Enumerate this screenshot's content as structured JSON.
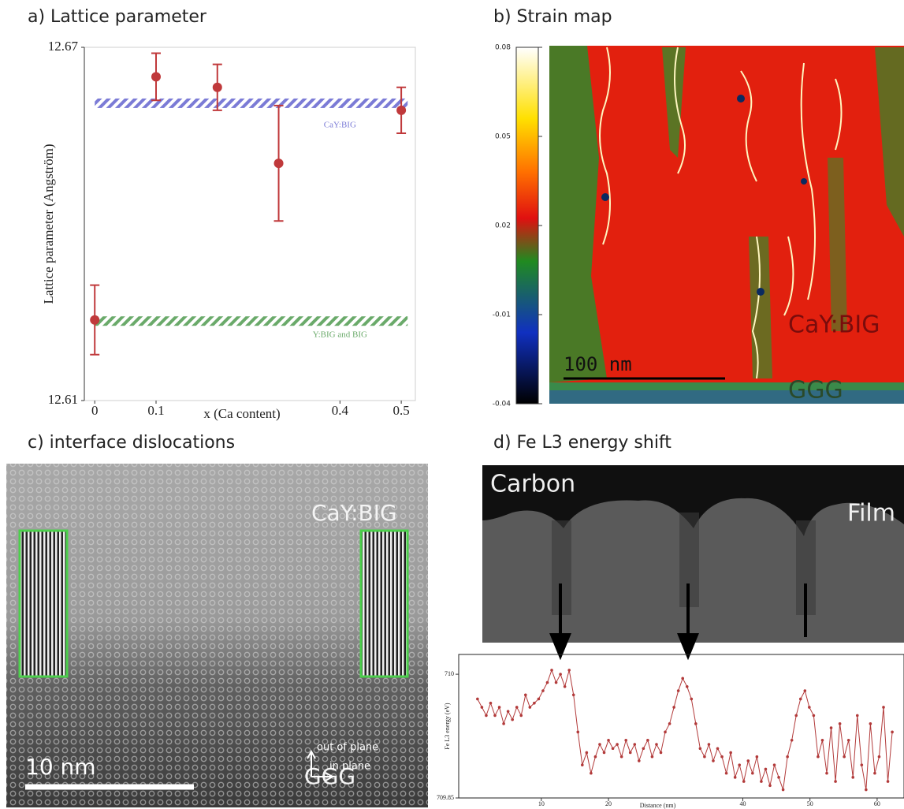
{
  "chart_data": [
    {
      "type": "scatter",
      "title": "a) Lattice parameter",
      "x_label": "x (Ca content)",
      "y_label": "Lattice parameter (Angström)",
      "x": [
        0,
        0.1,
        0.2,
        0.3,
        0.5
      ],
      "series": [
        {
          "color": "#c0393b",
          "values": [
            12.6237,
            12.665,
            12.6632,
            12.6503,
            12.6593
          ],
          "errors": [
            0.0059,
            0.004,
            0.0039,
            0.0098,
            0.0039
          ]
        }
      ],
      "bands": [
        {
          "label": "CaY:BIG",
          "value": 12.6605,
          "color": "#7b7bd6"
        },
        {
          "label": "Y:BIG and BIG",
          "value": 12.6235,
          "color": "#6aaa6a"
        }
      ],
      "xlim": [
        -0.017,
        0.523
      ],
      "xticks": [
        0,
        0.1,
        0.4,
        0.5
      ],
      "ylim": [
        12.61,
        12.67
      ],
      "yticks": [
        12.61,
        12.67
      ]
    },
    {
      "type": "line",
      "title": "d) Fe L3 energy shift",
      "x_label": "Distance (nm)",
      "y_label": "Fe L3 energy (eV)",
      "x": [
        0.5,
        1.15,
        1.8,
        2.45,
        3.1,
        3.75,
        4.4,
        5.05,
        5.7,
        6.35,
        7,
        7.65,
        8.3,
        8.95,
        9.6,
        10.25,
        10.9,
        11.55,
        12.2,
        12.85,
        13.5,
        14.15,
        14.8,
        15.45,
        16.1,
        16.75,
        17.4,
        18.05,
        18.7,
        19.35,
        20,
        20.65,
        21.3,
        21.95,
        22.6,
        23.25,
        23.9,
        24.55,
        25.2,
        25.85,
        26.5,
        27.15,
        27.8,
        28.45,
        29.1,
        29.75,
        30.4,
        31.05,
        31.7,
        32.35,
        33,
        33.65,
        34.3,
        34.95,
        35.6,
        36.25,
        36.9,
        37.55,
        38.2,
        38.85,
        39.5,
        40.15,
        40.8,
        41.45,
        42.1,
        42.75,
        43.4,
        44.05,
        44.7,
        45.35,
        46,
        46.65,
        47.3,
        47.95,
        48.6,
        49.25,
        49.9,
        50.55,
        51.2,
        51.85,
        52.5,
        53.15,
        53.8,
        54.45,
        55.1,
        55.75,
        56.4,
        57.05,
        57.7,
        58.35,
        59,
        59.65,
        60.3,
        60.95,
        61.6,
        62.25
      ],
      "series": [
        {
          "color": "#b23a3a",
          "values": [
            709.97,
            709.96,
            709.95,
            709.965,
            709.95,
            709.96,
            709.94,
            709.955,
            709.945,
            709.96,
            709.95,
            709.975,
            709.96,
            709.965,
            709.97,
            709.98,
            709.99,
            710.005,
            709.99,
            710.0,
            709.985,
            710.005,
            709.975,
            709.93,
            709.89,
            709.905,
            709.88,
            709.9,
            709.915,
            709.905,
            709.92,
            709.91,
            709.915,
            709.9,
            709.92,
            709.905,
            709.915,
            709.895,
            709.91,
            709.92,
            709.9,
            709.915,
            709.905,
            709.93,
            709.94,
            709.96,
            709.98,
            709.995,
            709.985,
            709.97,
            709.94,
            709.91,
            709.9,
            709.915,
            709.895,
            709.91,
            709.9,
            709.88,
            709.905,
            709.875,
            709.89,
            709.87,
            709.895,
            709.88,
            709.9,
            709.87,
            709.885,
            709.865,
            709.89,
            709.875,
            709.86,
            709.9,
            709.92,
            709.95,
            709.97,
            709.98,
            709.96,
            709.95,
            709.9,
            709.92,
            709.88,
            709.935,
            709.87,
            709.94,
            709.9,
            709.92,
            709.875,
            709.95,
            709.89,
            709.86,
            709.94,
            709.88,
            709.9,
            709.96,
            709.87,
            709.93
          ]
        }
      ],
      "xlim": [
        -2.3,
        64
      ],
      "xticks": [
        10,
        20,
        40,
        50,
        60
      ],
      "ylim": [
        709.85,
        710.024
      ],
      "yticks": [
        709.85,
        710
      ]
    }
  ],
  "strain_map": {
    "title": "b) Strain map",
    "colorbar": {
      "ylim": [
        -0.04,
        0.08
      ],
      "yticks": [
        0.08,
        0.05,
        0.02,
        -0.01,
        -0.04
      ]
    },
    "labels": [
      "CaY:BIG",
      "GGG"
    ],
    "scale_bar": "100 nm"
  },
  "dislocation_image": {
    "title": "c) interface dislocations",
    "labels": [
      "CaY:BIG",
      "GGG"
    ],
    "scale_bar": "10 nm",
    "axes": [
      "out of plane",
      "in plane"
    ]
  },
  "eels_image": {
    "labels": [
      "Carbon",
      "Film"
    ]
  }
}
